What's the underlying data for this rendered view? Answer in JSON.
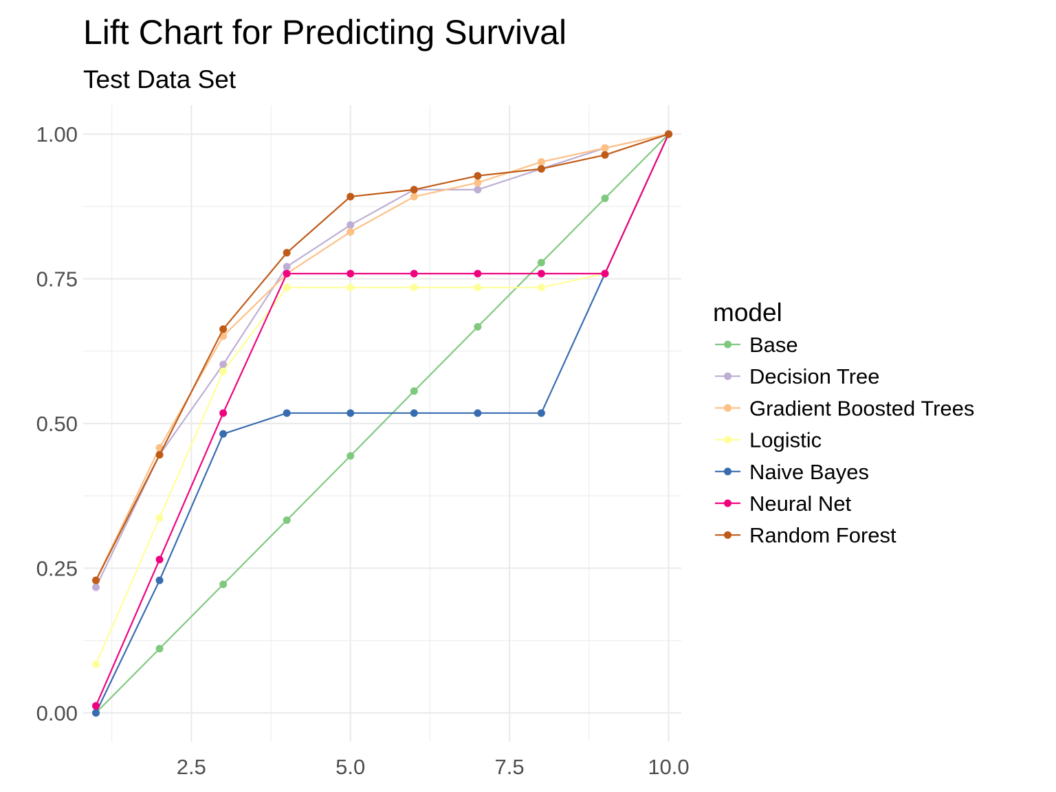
{
  "chart_data": {
    "type": "line",
    "title": "Lift Chart for Predicting Survival",
    "subtitle": "Test Data Set",
    "xlabel": "",
    "ylabel": "",
    "xlim": [
      0.8,
      10.2
    ],
    "ylim": [
      -0.05,
      1.05
    ],
    "x_ticks": [
      2.5,
      5.0,
      7.5,
      10.0
    ],
    "x_tick_labels": [
      "2.5",
      "5.0",
      "7.5",
      "10.0"
    ],
    "x_minor_ticks": [
      1.25,
      3.75,
      6.25,
      8.75
    ],
    "y_ticks": [
      0.0,
      0.25,
      0.5,
      0.75,
      1.0
    ],
    "y_tick_labels": [
      "0.00",
      "0.25",
      "0.50",
      "0.75",
      "1.00"
    ],
    "y_minor_ticks": [
      0.125,
      0.375,
      0.625,
      0.875
    ],
    "grid": true,
    "legend_title": "model",
    "legend_position": "right",
    "x": [
      1,
      2,
      3,
      4,
      5,
      6,
      7,
      8,
      9,
      10
    ],
    "series": [
      {
        "name": "Base",
        "color": "#7fc97f",
        "values": [
          0.0,
          0.111,
          0.222,
          0.333,
          0.444,
          0.556,
          0.667,
          0.778,
          0.889,
          1.0
        ]
      },
      {
        "name": "Decision Tree",
        "color": "#beaed4",
        "values": [
          0.217,
          0.446,
          0.602,
          0.771,
          0.843,
          0.904,
          0.904,
          0.94,
          0.976,
          1.0
        ]
      },
      {
        "name": "Gradient Boosted Trees",
        "color": "#fdc086",
        "values": [
          0.229,
          0.458,
          0.651,
          0.759,
          0.831,
          0.892,
          0.916,
          0.952,
          0.976,
          1.0
        ]
      },
      {
        "name": "Logistic",
        "color": "#ffff99",
        "values": [
          0.084,
          0.337,
          0.59,
          0.735,
          0.735,
          0.735,
          0.735,
          0.735,
          0.759,
          1.0
        ]
      },
      {
        "name": "Naive Bayes",
        "color": "#386cb0",
        "values": [
          0.0,
          0.229,
          0.482,
          0.518,
          0.518,
          0.518,
          0.518,
          0.518,
          0.759,
          1.0
        ]
      },
      {
        "name": "Neural Net",
        "color": "#f0027f",
        "values": [
          0.012,
          0.265,
          0.518,
          0.759,
          0.759,
          0.759,
          0.759,
          0.759,
          0.759,
          1.0
        ]
      },
      {
        "name": "Random Forest",
        "color": "#bf5b17",
        "values": [
          0.229,
          0.446,
          0.663,
          0.795,
          0.892,
          0.904,
          0.928,
          0.94,
          0.964,
          1.0
        ]
      }
    ]
  }
}
